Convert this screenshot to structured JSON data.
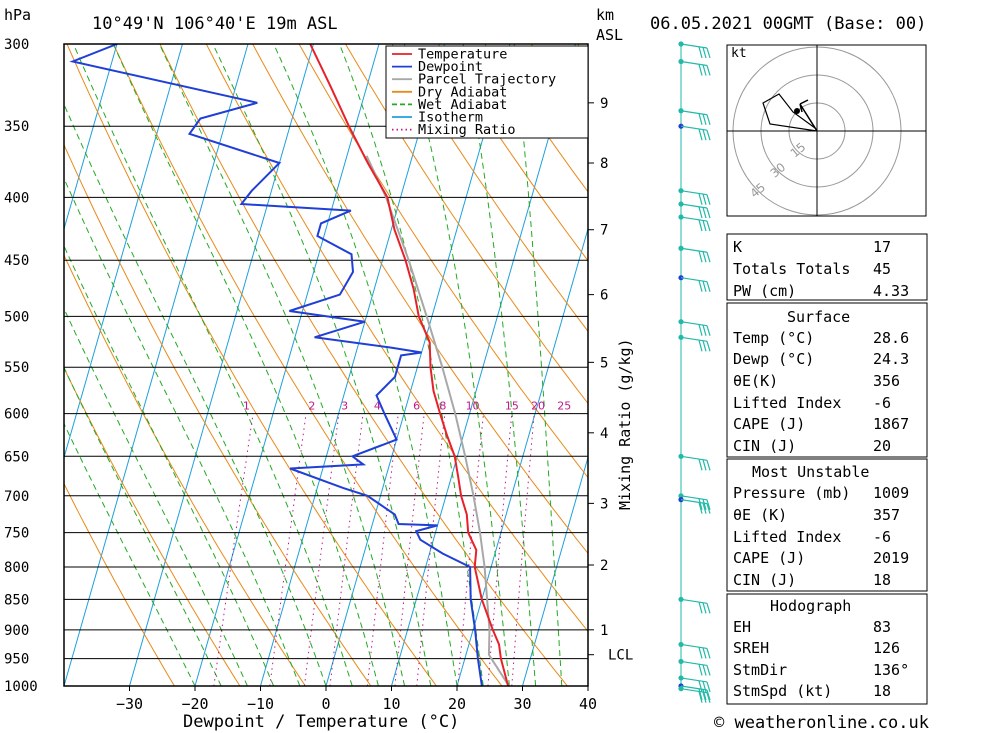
{
  "header": {
    "pressure_unit": "hPa",
    "location": "10°49'N 106°40'E 19m ASL",
    "km_label": "km",
    "asl_label": "ASL",
    "datetime": "06.05.2021 00GMT (Base: 00)"
  },
  "footer": {
    "credit": "© weatheronline.co.uk"
  },
  "chart_data": {
    "type": "skew-t",
    "xlabel": "Dewpoint / Temperature (°C)",
    "ylabel_right": "Mixing Ratio (g/kg)",
    "temperature_ticks": [
      -30,
      -20,
      -10,
      0,
      10,
      20,
      30,
      40
    ],
    "temperature_range": [
      -40,
      40
    ],
    "pressure_ticks": [
      300,
      350,
      400,
      450,
      500,
      550,
      600,
      650,
      700,
      750,
      800,
      850,
      900,
      950,
      1000
    ],
    "pressure_range": [
      300,
      1000
    ],
    "height_ticks": [
      {
        "km": "9",
        "p": 335
      },
      {
        "km": "8",
        "p": 375
      },
      {
        "km": "7",
        "p": 425
      },
      {
        "km": "6",
        "p": 480
      },
      {
        "km": "5",
        "p": 545
      },
      {
        "km": "4",
        "p": 622
      },
      {
        "km": "3",
        "p": 710
      },
      {
        "km": "2",
        "p": 797
      },
      {
        "km": "1",
        "p": 900
      }
    ],
    "lcl": {
      "label": "LCL",
      "p": 943
    },
    "mixing_ratio_labels": [
      "1",
      "2",
      "3",
      "4",
      "6",
      "8",
      "10",
      "15",
      "20",
      "25"
    ],
    "mixing_ratio_label_temps_600": [
      -24,
      -14,
      -9,
      -4,
      2,
      6,
      10,
      16,
      20,
      24
    ],
    "legend": [
      {
        "name": "Temperature",
        "color": "#e8202a",
        "style": "solid"
      },
      {
        "name": "Dewpoint",
        "color": "#1f3fd6",
        "style": "solid"
      },
      {
        "name": "Parcel Trajectory",
        "color": "#a8a8a8",
        "style": "solid"
      },
      {
        "name": "Dry Adiabat",
        "color": "#e98a1a",
        "style": "solid"
      },
      {
        "name": "Wet Adiabat",
        "color": "#22aa22",
        "style": "dashed"
      },
      {
        "name": "Isotherm",
        "color": "#1ea0dc",
        "style": "solid"
      },
      {
        "name": "Mixing Ratio",
        "color": "#c0188c",
        "style": "dotted"
      }
    ],
    "temperature_profile": [
      [
        1009,
        28.6
      ],
      [
        1000,
        27.8
      ],
      [
        950,
        25.5
      ],
      [
        925,
        24.6
      ],
      [
        900,
        23.0
      ],
      [
        850,
        20.0
      ],
      [
        800,
        17.5
      ],
      [
        775,
        17.0
      ],
      [
        750,
        15.0
      ],
      [
        725,
        14.0
      ],
      [
        700,
        12.3
      ],
      [
        675,
        11.0
      ],
      [
        650,
        9.6
      ],
      [
        625,
        7.5
      ],
      [
        600,
        5.5
      ],
      [
        575,
        3.5
      ],
      [
        550,
        2.0
      ],
      [
        525,
        0.8
      ],
      [
        500,
        -2.0
      ],
      [
        475,
        -4.0
      ],
      [
        450,
        -6.5
      ],
      [
        425,
        -9.5
      ],
      [
        400,
        -12.0
      ],
      [
        375,
        -16.5
      ],
      [
        350,
        -21.0
      ],
      [
        325,
        -25.5
      ],
      [
        300,
        -30.5
      ]
    ],
    "dewpoint_profile": [
      [
        1009,
        24.3
      ],
      [
        1000,
        23.8
      ],
      [
        950,
        22.0
      ],
      [
        900,
        20.3
      ],
      [
        850,
        18.3
      ],
      [
        800,
        16.8
      ],
      [
        780,
        12.0
      ],
      [
        760,
        8.0
      ],
      [
        748,
        7.0
      ],
      [
        740,
        10.0
      ],
      [
        738,
        4.0
      ],
      [
        725,
        3.0
      ],
      [
        700,
        -2.0
      ],
      [
        690,
        -6.0
      ],
      [
        665,
        -15.0
      ],
      [
        660,
        -4.0
      ],
      [
        655,
        -5.0
      ],
      [
        650,
        -6.0
      ],
      [
        630,
        0.0
      ],
      [
        600,
        -3.0
      ],
      [
        580,
        -5.0
      ],
      [
        560,
        -3.0
      ],
      [
        545,
        -3.0
      ],
      [
        538,
        -3.0
      ],
      [
        535,
        0.0
      ],
      [
        530,
        -5.0
      ],
      [
        520,
        -17.0
      ],
      [
        505,
        -10.0
      ],
      [
        495,
        -22.0
      ],
      [
        480,
        -15.0
      ],
      [
        460,
        -14.0
      ],
      [
        445,
        -15.0
      ],
      [
        430,
        -21.0
      ],
      [
        420,
        -21.0
      ],
      [
        410,
        -17.0
      ],
      [
        405,
        -34.0
      ],
      [
        395,
        -33.0
      ],
      [
        375,
        -30.0
      ],
      [
        355,
        -45.0
      ],
      [
        345,
        -44.0
      ],
      [
        335,
        -36.0
      ],
      [
        310,
        -66.0
      ],
      [
        300,
        -60.0
      ]
    ],
    "parcel_profile": [
      [
        1009,
        28.6
      ],
      [
        943,
        23.5
      ],
      [
        900,
        22.5
      ],
      [
        850,
        20.8
      ],
      [
        800,
        19.0
      ],
      [
        750,
        16.8
      ],
      [
        700,
        14.2
      ],
      [
        650,
        11.2
      ],
      [
        600,
        7.8
      ],
      [
        550,
        3.8
      ],
      [
        500,
        -0.8
      ],
      [
        450,
        -6.0
      ],
      [
        400,
        -12.2
      ],
      [
        370,
        -17.0
      ]
    ],
    "wind_barb_pressures": [
      300,
      310,
      340,
      350,
      395,
      405,
      415,
      440,
      465,
      505,
      520,
      650,
      700,
      705,
      850,
      925,
      955,
      985,
      1000,
      1005
    ]
  },
  "hodograph": {
    "unit": "kt",
    "ring_labels": [
      "15",
      "30",
      "45"
    ]
  },
  "indices": {
    "k_label": "K",
    "k_value": "17",
    "tt_label": "Totals Totals",
    "tt_value": "45",
    "pw_label": "PW (cm)",
    "pw_value": "4.33"
  },
  "surface": {
    "title": "Surface",
    "temp_label": "Temp (°C)",
    "temp_value": "28.6",
    "dewp_label": "Dewp (°C)",
    "dewp_value": "24.3",
    "theta_label": "θE(K)",
    "theta_value": "356",
    "li_label": "Lifted Index",
    "li_value": "-6",
    "cape_label": "CAPE (J)",
    "cape_value": "1867",
    "cin_label": "CIN (J)",
    "cin_value": "20"
  },
  "most_unstable": {
    "title": "Most Unstable",
    "pressure_label": "Pressure (mb)",
    "pressure_value": "1009",
    "theta_label": "θE (K)",
    "theta_value": "357",
    "li_label": "Lifted Index",
    "li_value": "-6",
    "cape_label": "CAPE (J)",
    "cape_value": "2019",
    "cin_label": "CIN (J)",
    "cin_value": "18"
  },
  "hodograph_table": {
    "title": "Hodograph",
    "eh_label": "EH",
    "eh_value": "83",
    "srh_label": "SREH",
    "srh_value": "126",
    "stmdir_label": "StmDir",
    "stmdir_value": "136°",
    "stmspd_label": "StmSpd (kt)",
    "stmspd_value": "18"
  },
  "colors": {
    "temperature": "#e8202a",
    "dewpoint": "#1f3fd6",
    "parcel": "#a8a8a8",
    "dry_adiabat": "#e98a1a",
    "wet_adiabat": "#22aa22",
    "isotherm": "#1ea0dc",
    "mixing_ratio": "#c0188c",
    "wind_barb": "#22b9a8",
    "wind_dot": "#22cc22"
  }
}
